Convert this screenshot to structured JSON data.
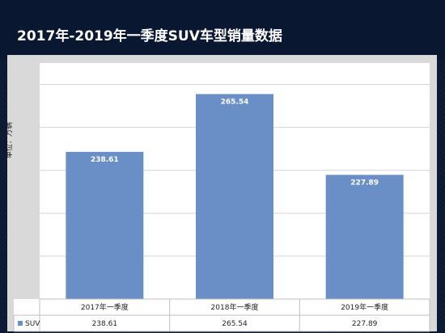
{
  "header": {
    "title": "2017年-2019年一季度SUV车型销量数据"
  },
  "chart_data": {
    "type": "bar",
    "categories": [
      "2017年一季度",
      "2018年一季度",
      "2019年一季度"
    ],
    "series": [
      {
        "name": "SUV",
        "values": [
          238.61,
          265.54,
          227.89
        ],
        "color": "#6a8fc6"
      }
    ],
    "ylabel": "单位：万辆",
    "ylim": [
      170,
      280
    ],
    "grid": true,
    "data_table": true
  }
}
